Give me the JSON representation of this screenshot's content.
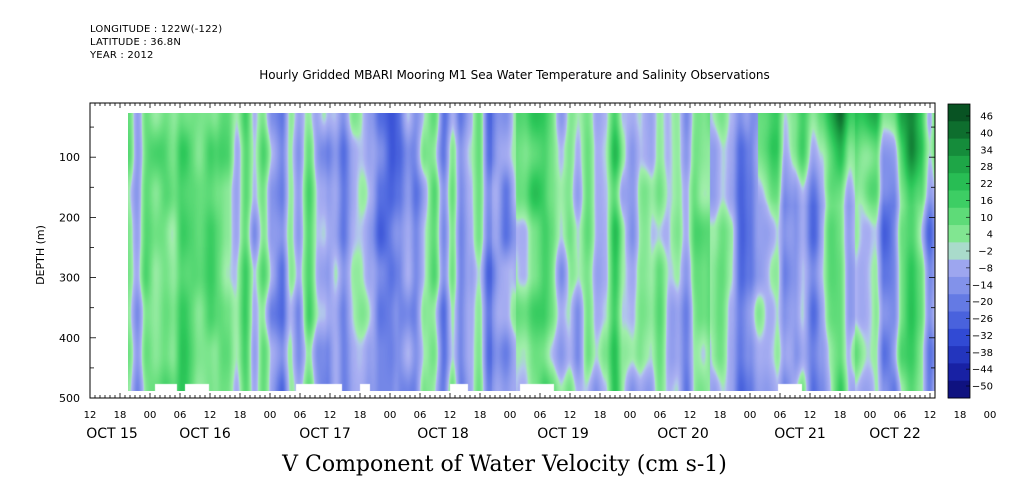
{
  "metadata": {
    "longitude": "LONGITUDE : 122W(-122)",
    "latitude": "LATITUDE : 36.8N",
    "year": "YEAR : 2012"
  },
  "chart_data": {
    "type": "heatmap",
    "title": "Hourly Gridded MBARI Mooring M1 Sea Water Temperature and Salinity Observations",
    "xlabel": "V Component of Water Velocity (cm s-1)",
    "ylabel": "DEPTH (m)",
    "x_range_hours": [
      "OCT 15 12:00",
      "OCT 22 13:00"
    ],
    "x_hour_ticks": [
      "12",
      "18",
      "00",
      "06",
      "12",
      "18",
      "00",
      "06",
      "12",
      "18",
      "00",
      "06",
      "12",
      "18",
      "00",
      "06",
      "12",
      "18",
      "00",
      "06",
      "12",
      "18",
      "00",
      "06",
      "12",
      "18",
      "00",
      "06",
      "12",
      "18",
      "00",
      "06",
      "12"
    ],
    "x_day_labels": [
      "OCT 15",
      "OCT 16",
      "OCT 17",
      "OCT 18",
      "OCT 19",
      "OCT 20",
      "OCT 21",
      "OCT 22"
    ],
    "ylim": [
      500,
      10
    ],
    "y_ticks": [
      100,
      200,
      300,
      400,
      500
    ],
    "colorbar_ticks": [
      46,
      40,
      34,
      28,
      22,
      16,
      10,
      4,
      -2,
      -8,
      -14,
      -20,
      -26,
      -32,
      -38,
      -44,
      -50
    ],
    "color_range": [
      -50,
      52
    ],
    "colors": {
      "strong_negative": "#0a0a6e",
      "negative": "#3a5ad2",
      "weak_negative": "#a6aef0",
      "weak_positive": "#9aeaa8",
      "positive": "#2ec85a",
      "strong_positive": "#0a5a2a"
    },
    "notes": "Filled contour of northward velocity vs time and depth; alternating vertical bands of positive (green) and negative (blue) values; strongest positive velocities near surface after OCT 19."
  }
}
